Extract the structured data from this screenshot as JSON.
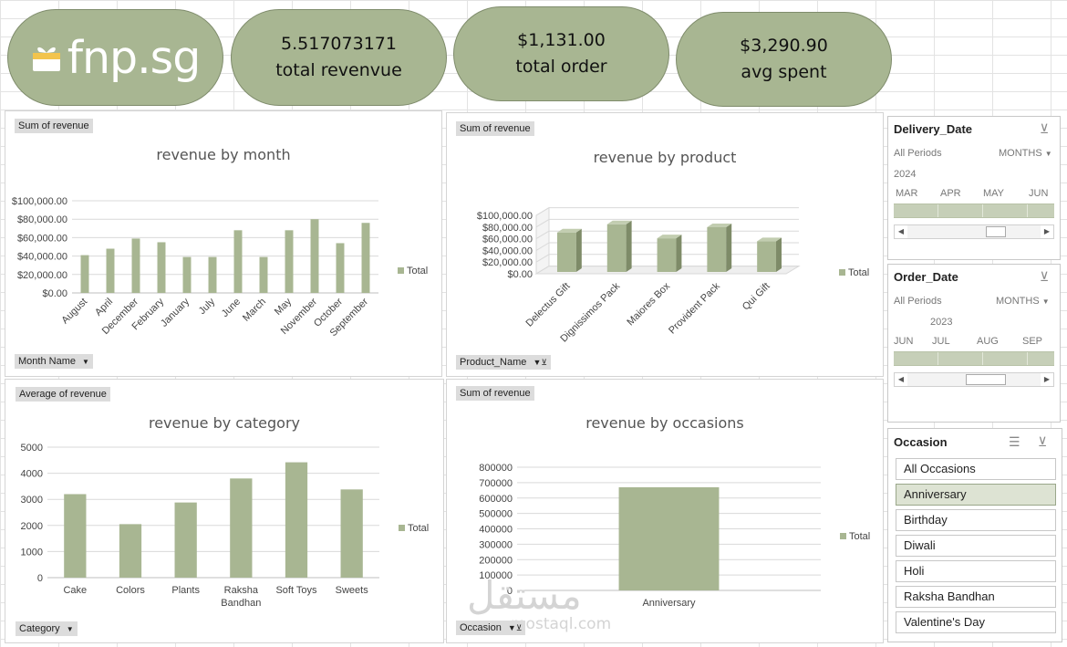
{
  "brand": {
    "logo_text": "fnp.sg"
  },
  "kpis": [
    {
      "value": "5.517073171",
      "label": "total revenvue"
    },
    {
      "value": "$1,131.00",
      "label": "total order"
    },
    {
      "value": "$3,290.90",
      "label": "avg spent"
    }
  ],
  "colors": {
    "bar": "#a8b692",
    "bar_side": "#7e8b68",
    "bar_top": "#c2cdb0",
    "kpi_bg": "#a8b692"
  },
  "legend_label": "Total",
  "charts": {
    "month": {
      "field_value": "Sum of revenue",
      "field_axis": "Month Name"
    },
    "product": {
      "field_value": "Sum of revenue",
      "field_axis": "Product_Name"
    },
    "category": {
      "field_value": "Average of revenue",
      "field_axis": "Category"
    },
    "occasion": {
      "field_value": "Sum of revenue",
      "field_axis": "Occasion"
    }
  },
  "chart_data": [
    {
      "type": "bar",
      "title": "revenue by month",
      "categories": [
        "August",
        "April",
        "December",
        "February",
        "January",
        "July",
        "June",
        "March",
        "May",
        "November",
        "October",
        "September"
      ],
      "series": [
        {
          "name": "Total",
          "values": [
            41000,
            48000,
            59000,
            55000,
            39000,
            39000,
            68000,
            39000,
            68000,
            80000,
            54000,
            76000
          ]
        }
      ],
      "yticks": [
        "$0.00",
        "$20,000.00",
        "$40,000.00",
        "$60,000.00",
        "$80,000.00",
        "$100,000.00"
      ],
      "ylim": [
        0,
        100000
      ],
      "grid": true,
      "legend": "right"
    },
    {
      "type": "bar",
      "title": "revenue by product",
      "categories": [
        "Delectus Gift",
        "Dignissimos Pack",
        "Maiores Box",
        "Provident Pack",
        "Qui Gift"
      ],
      "series": [
        {
          "name": "Total",
          "values": [
            77000,
            91000,
            67000,
            86000,
            62000
          ]
        }
      ],
      "yticks": [
        "$0.00",
        "$20,000.00",
        "$40,000.00",
        "$60,000.00",
        "$80,000.00",
        "$100,000.00"
      ],
      "ylim": [
        0,
        100000
      ],
      "grid": true,
      "legend": "right",
      "style": "3d"
    },
    {
      "type": "bar",
      "title": "revenue by category",
      "categories": [
        "Cake",
        "Colors",
        "Plants",
        "Raksha Bandhan",
        "Soft Toys",
        "Sweets"
      ],
      "series": [
        {
          "name": "Total",
          "values": [
            3200,
            2050,
            2880,
            3800,
            4420,
            3380
          ]
        }
      ],
      "yticks": [
        "0",
        "1000",
        "2000",
        "3000",
        "4000",
        "5000"
      ],
      "ylim": [
        0,
        5000
      ],
      "grid": true,
      "legend": "right"
    },
    {
      "type": "bar",
      "title": "revenue by occasions",
      "categories": [
        "Anniversary"
      ],
      "series": [
        {
          "name": "Total",
          "values": [
            670000
          ]
        }
      ],
      "yticks": [
        "0",
        "100000",
        "200000",
        "300000",
        "400000",
        "500000",
        "600000",
        "700000",
        "800000"
      ],
      "ylim": [
        0,
        800000
      ],
      "grid": true,
      "legend": "right"
    }
  ],
  "timelines": [
    {
      "title": "Delivery_Date",
      "period_label": "All Periods",
      "level": "MONTHS",
      "year": "2024",
      "months": [
        "MAR",
        "APR",
        "MAY",
        "JUN"
      ]
    },
    {
      "title": "Order_Date",
      "period_label": "All Periods",
      "level": "MONTHS",
      "year": "2023",
      "months": [
        "JUN",
        "JUL",
        "AUG",
        "SEP"
      ]
    }
  ],
  "occasion_slicer": {
    "title": "Occasion",
    "items": [
      "All Occasions",
      "Anniversary",
      "Birthday",
      "Diwali",
      "Holi",
      "Raksha Bandhan",
      "Valentine's Day"
    ],
    "selected_index": 1
  },
  "watermark": {
    "text_ar": "مستقل",
    "text_en": "mostaql.com"
  }
}
